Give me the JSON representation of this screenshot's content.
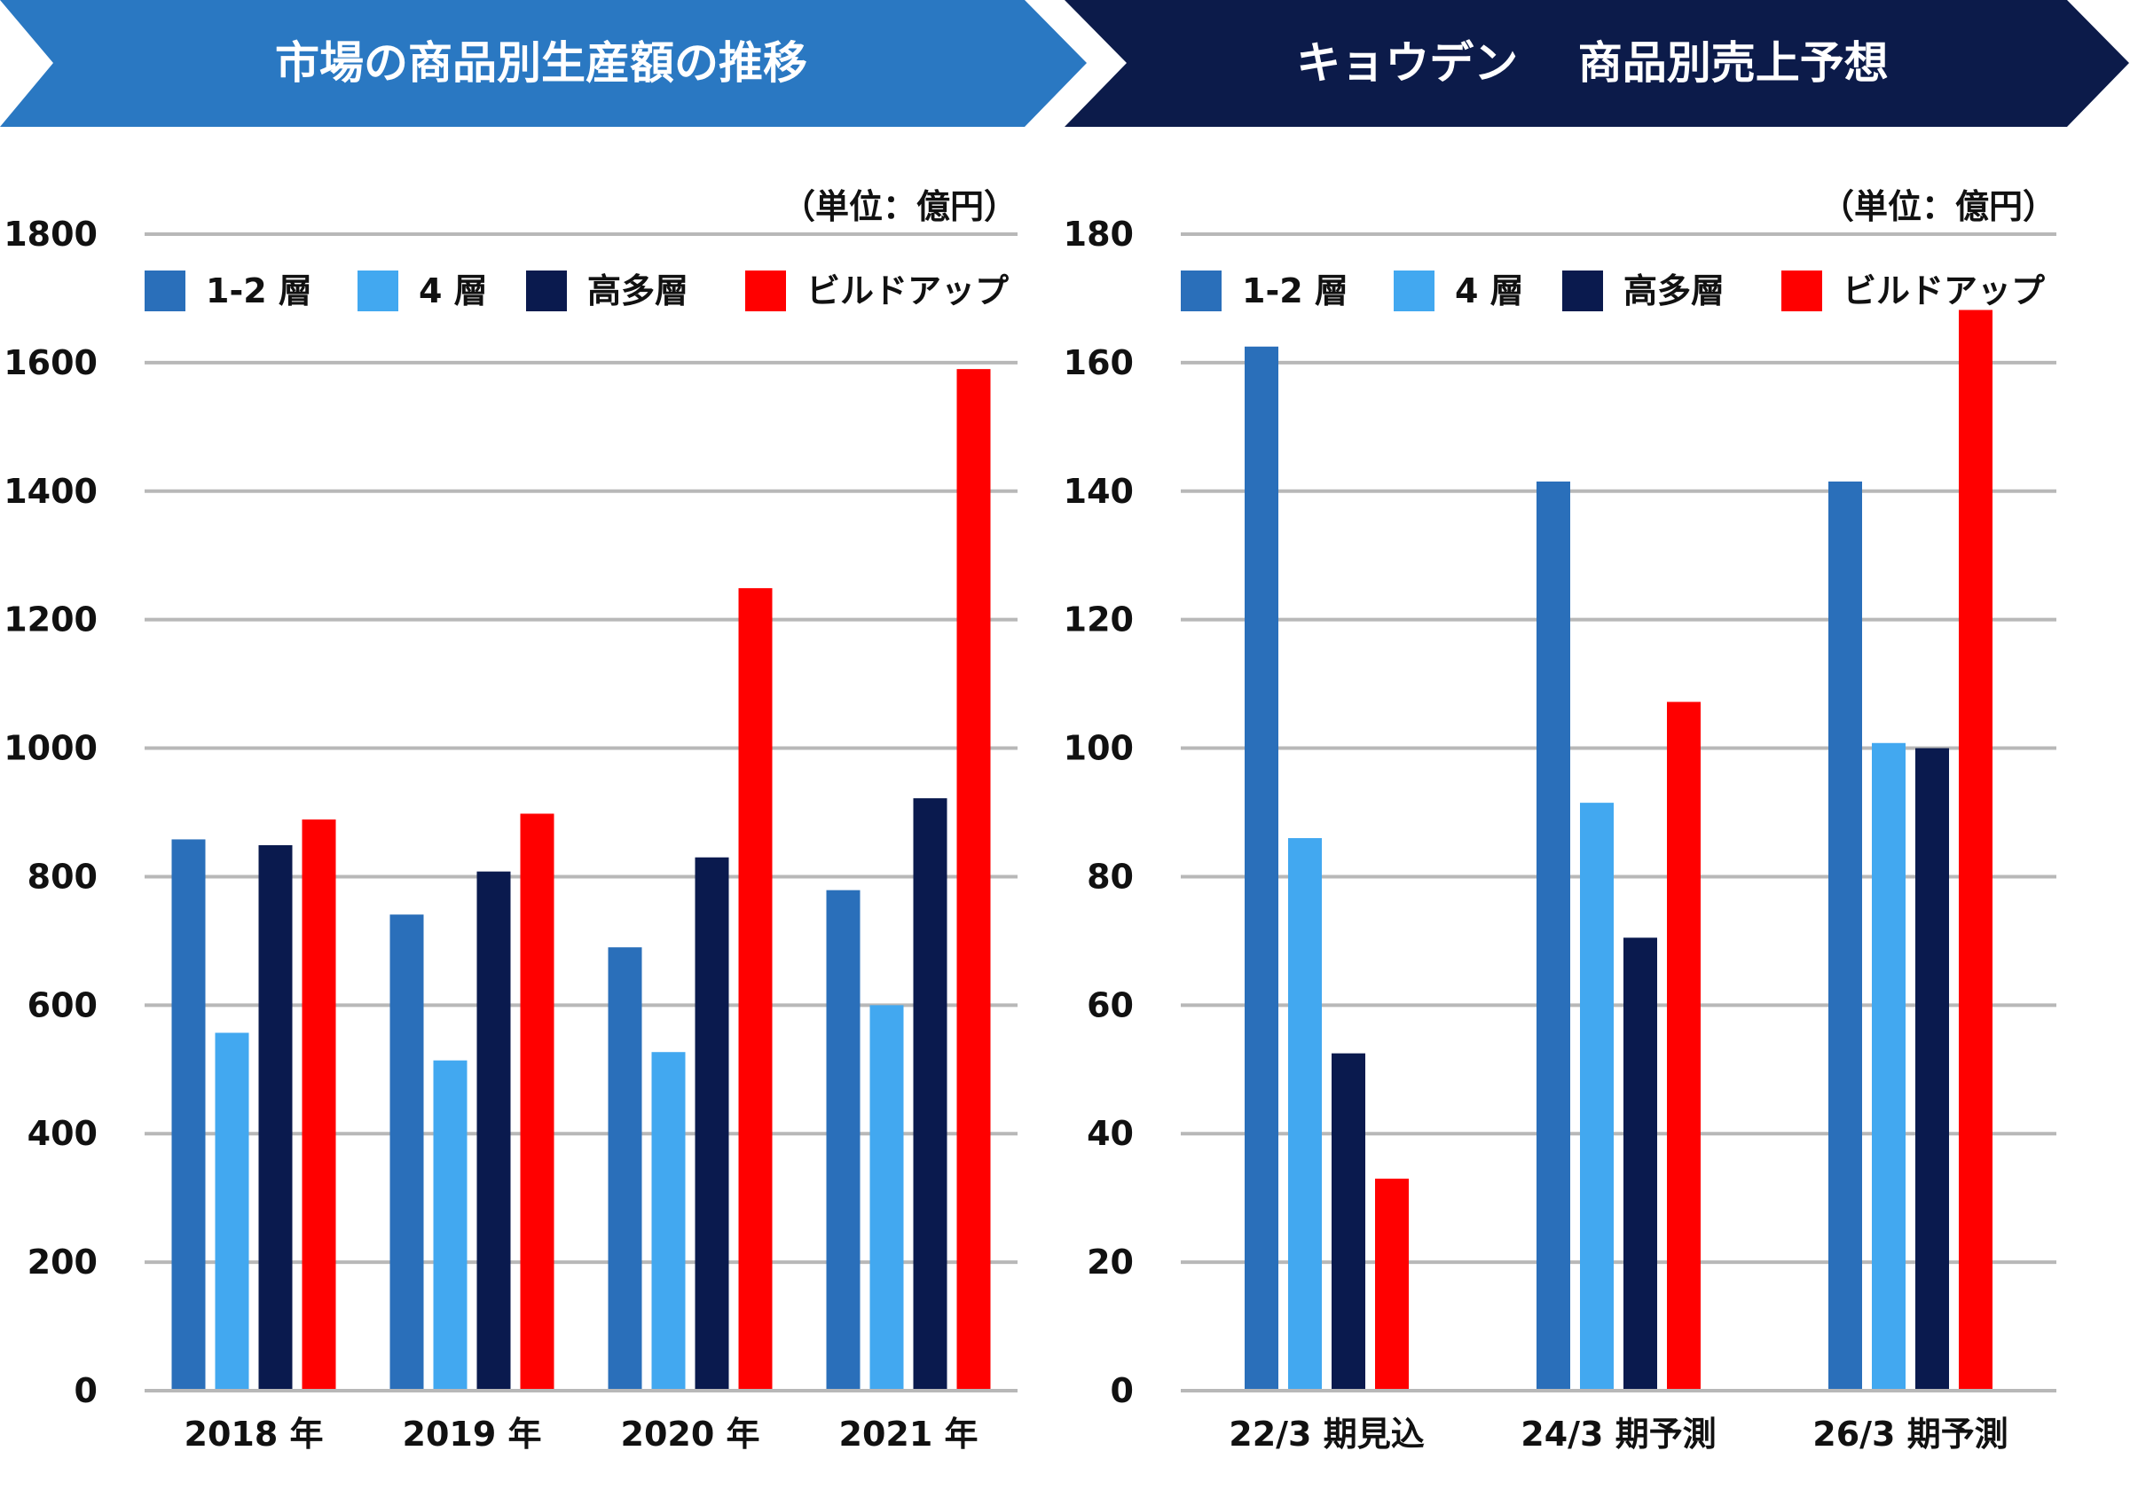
{
  "banners": [
    {
      "text": "市場の商品別生産額の推移",
      "color": "#2a78c2"
    },
    {
      "text": "キョウデン　 商品別売上予想",
      "color": "#0c1b4a"
    }
  ],
  "colors": {
    "series_1_2": "#2a6fba",
    "series_4": "#42a8f0",
    "series_multi": "#0a1a4e",
    "series_buildup": "#ff0000",
    "grid": "#b8b8b8"
  },
  "chart_data": [
    {
      "type": "bar",
      "title": "市場の商品別生産額の推移",
      "unit_label": "（単位：億円）",
      "categories": [
        "2018 年",
        "2019 年",
        "2020 年",
        "2021 年"
      ],
      "series": [
        {
          "name": "1-2 層",
          "values": [
            858,
            741,
            690,
            779
          ]
        },
        {
          "name": "4 層",
          "values": [
            557,
            514,
            527,
            600
          ]
        },
        {
          "name": "高多層",
          "values": [
            849,
            808,
            830,
            922
          ]
        },
        {
          "name": "ビルドアップ",
          "values": [
            889,
            898,
            1249,
            1590
          ]
        }
      ],
      "ylim": [
        0,
        1800
      ],
      "yticks": [
        0,
        200,
        400,
        600,
        800,
        1000,
        1200,
        1400,
        1600,
        1800
      ],
      "grid": true,
      "legend_position": "top"
    },
    {
      "type": "bar",
      "title": "キョウデン　 商品別売上予想",
      "unit_label": "（単位：億円）",
      "categories": [
        "22/3 期見込",
        "24/3 期予測",
        "26/3 期予測"
      ],
      "series": [
        {
          "name": "1-2 層",
          "values": [
            162.5,
            141.5,
            141.5
          ]
        },
        {
          "name": "4 層",
          "values": [
            86,
            91.5,
            100.8
          ]
        },
        {
          "name": "高多層",
          "values": [
            52.5,
            70.5,
            100
          ]
        },
        {
          "name": "ビルドアップ",
          "values": [
            33,
            107.2,
            168.2
          ]
        }
      ],
      "ylim": [
        0,
        180
      ],
      "yticks": [
        0,
        20,
        40,
        60,
        80,
        100,
        120,
        140,
        160,
        180
      ],
      "grid": true,
      "legend_position": "top"
    }
  ]
}
